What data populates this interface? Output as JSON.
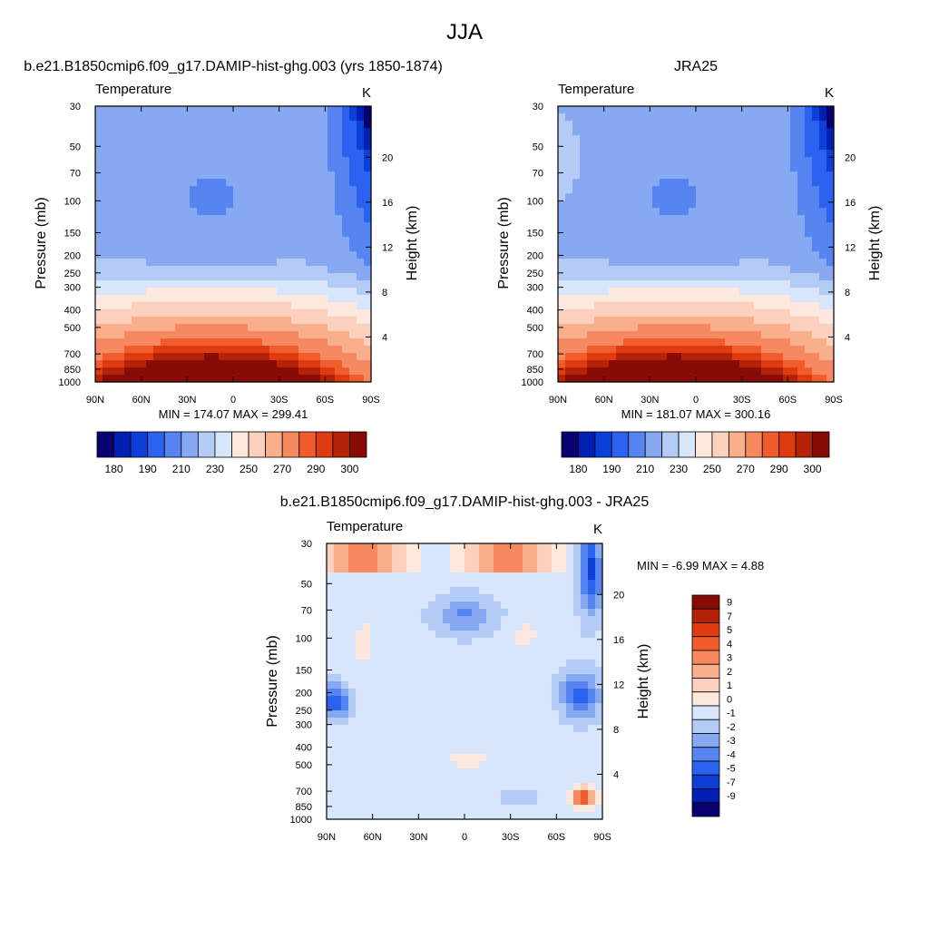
{
  "figure": {
    "title": "JJA"
  },
  "palette": {
    "abs": [
      "#08006f",
      "#0020b3",
      "#0b3fd8",
      "#2b63f0",
      "#5684f0",
      "#86a9f1",
      "#b3cbf5",
      "#d8e6fb",
      "#fde8dd",
      "#fbd0bc",
      "#f9ae8c",
      "#f6895f",
      "#f15c2c",
      "#e03b10",
      "#b42208",
      "#870c05"
    ],
    "diff": [
      "#08006f",
      "#0020b3",
      "#0b3fd8",
      "#2b63f0",
      "#5684f0",
      "#86a9f1",
      "#b3cbf5",
      "#d8e6fb",
      "#fde8dd",
      "#fbd0bc",
      "#f9ae8c",
      "#f6895f",
      "#f15c2c",
      "#e03b10",
      "#b42208",
      "#870c05"
    ]
  },
  "chart_data": [
    {
      "type": "heatmap",
      "title": "b.e21.B1850cmip6.f09_g17.DAMIP-hist-ghg.003 (yrs 1850-1874)",
      "variable": "Temperature",
      "units": "K",
      "ylabel": "Pressure (mb)",
      "y2label": "Height (km)",
      "x_ticks": [
        "90N",
        "60N",
        "30N",
        "0",
        "30S",
        "60S",
        "90S"
      ],
      "y_ticks": [
        "30",
        "50",
        "70",
        "100",
        "150",
        "200",
        "250",
        "300",
        "400",
        "500",
        "700",
        "850",
        "1000"
      ],
      "y2_ticks": [
        "20",
        "16",
        "12",
        "8",
        "4"
      ],
      "stats": "MIN = 174.07  MAX = 299.41",
      "min": 174.07,
      "max": 299.41,
      "colorbar_labels": [
        "180",
        "190",
        "210",
        "230",
        "250",
        "270",
        "290",
        "300"
      ],
      "colorbar_position": "bottom"
    },
    {
      "type": "heatmap",
      "title": "JRA25",
      "variable": "Temperature",
      "units": "K",
      "ylabel": "Pressure (mb)",
      "y2label": "Height (km)",
      "x_ticks": [
        "90N",
        "60N",
        "30N",
        "0",
        "30S",
        "60S",
        "90S"
      ],
      "y_ticks": [
        "30",
        "50",
        "70",
        "100",
        "150",
        "200",
        "250",
        "300",
        "400",
        "500",
        "700",
        "850",
        "1000"
      ],
      "y2_ticks": [
        "20",
        "16",
        "12",
        "8",
        "4"
      ],
      "stats": "MIN = 181.07  MAX = 300.16",
      "min": 181.07,
      "max": 300.16,
      "colorbar_labels": [
        "180",
        "190",
        "210",
        "230",
        "250",
        "270",
        "290",
        "300"
      ],
      "colorbar_position": "bottom"
    },
    {
      "type": "heatmap",
      "title": "b.e21.B1850cmip6.f09_g17.DAMIP-hist-ghg.003 - JRA25",
      "variable": "Temperature",
      "units": "K",
      "ylabel": "Pressure (mb)",
      "y2label": "Height (km)",
      "x_ticks": [
        "90N",
        "60N",
        "30N",
        "0",
        "30S",
        "60S",
        "90S"
      ],
      "y_ticks": [
        "30",
        "50",
        "70",
        "100",
        "150",
        "200",
        "250",
        "300",
        "400",
        "500",
        "700",
        "850",
        "1000"
      ],
      "y2_ticks": [
        "20",
        "16",
        "12",
        "8",
        "4"
      ],
      "stats": "MIN =  -6.99  MAX =   4.88",
      "min": -6.99,
      "max": 4.88,
      "colorbar_labels": [
        "9",
        "7",
        "5",
        "4",
        "3",
        "2",
        "1",
        "0",
        "-1",
        "-2",
        "-3",
        "-4",
        "-5",
        "-7",
        "-9"
      ],
      "colorbar_position": "right"
    }
  ]
}
